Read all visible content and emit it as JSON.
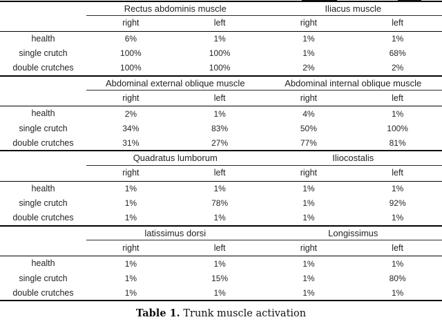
{
  "table": {
    "col_headers": [
      "right",
      "left",
      "right",
      "left"
    ],
    "sections": [
      {
        "muscles": [
          "Rectus abdominis muscle",
          "Iliacus muscle"
        ],
        "rows": [
          {
            "label": "health",
            "values": [
              "6%",
              "1%",
              "1%",
              "1%"
            ]
          },
          {
            "label": "single crutch",
            "values": [
              "100%",
              "100%",
              "1%",
              "68%"
            ]
          },
          {
            "label": "double crutches",
            "values": [
              "100%",
              "100%",
              "2%",
              "2%"
            ]
          }
        ]
      },
      {
        "muscles": [
          "Abdominal external oblique muscle",
          "Abdominal internal oblique muscle"
        ],
        "rows": [
          {
            "label": "health",
            "values": [
              "2%",
              "1%",
              "4%",
              "1%"
            ]
          },
          {
            "label": "single crutch",
            "values": [
              "34%",
              "83%",
              "50%",
              "100%"
            ]
          },
          {
            "label": "double crutches",
            "values": [
              "31%",
              "27%",
              "77%",
              "81%"
            ]
          }
        ]
      },
      {
        "muscles": [
          "Quadratus lumborum",
          "Iliocostalis"
        ],
        "rows": [
          {
            "label": "health",
            "values": [
              "1%",
              "1%",
              "1%",
              "1%"
            ]
          },
          {
            "label": "single crutch",
            "values": [
              "1%",
              "78%",
              "1%",
              "92%"
            ]
          },
          {
            "label": "double crutches",
            "values": [
              "1%",
              "1%",
              "1%",
              "1%"
            ]
          }
        ]
      },
      {
        "muscles": [
          "latissimus dorsi",
          "Longissimus"
        ],
        "rows": [
          {
            "label": "health",
            "values": [
              "1%",
              "1%",
              "1%",
              "1%"
            ]
          },
          {
            "label": "single crutch",
            "values": [
              "1%",
              "15%",
              "1%",
              "80%"
            ]
          },
          {
            "label": "double crutches",
            "values": [
              "1%",
              "1%",
              "1%",
              "1%"
            ]
          }
        ]
      }
    ]
  },
  "caption": {
    "label": "Table 1.",
    "text": "Trunk muscle activation"
  }
}
